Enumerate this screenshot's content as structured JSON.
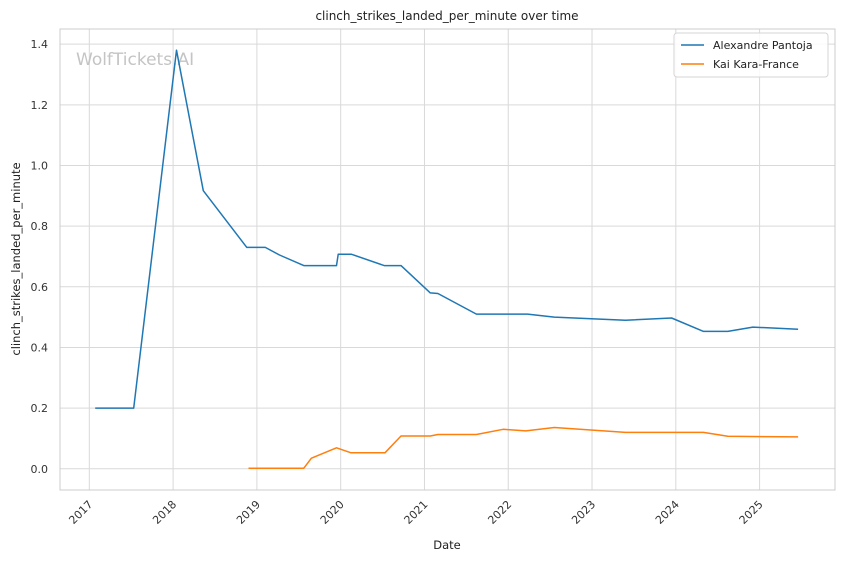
{
  "watermark": "WolfTickets.AI",
  "chart_data": {
    "type": "line",
    "title": "clinch_strikes_landed_per_minute over time",
    "xlabel": "Date",
    "ylabel": "clinch_strikes_landed_per_minute",
    "xlim": [
      2016.65,
      2025.9
    ],
    "ylim": [
      -0.07,
      1.45
    ],
    "x_ticks": [
      2017,
      2018,
      2019,
      2020,
      2021,
      2022,
      2023,
      2024,
      2025
    ],
    "x_tick_labels": [
      "2017",
      "2018",
      "2019",
      "2020",
      "2021",
      "2022",
      "2023",
      "2024",
      "2025"
    ],
    "y_ticks": [
      0.0,
      0.2,
      0.4,
      0.6,
      0.8,
      1.0,
      1.2,
      1.4
    ],
    "y_tick_labels": [
      "0.0",
      "0.2",
      "0.4",
      "0.6",
      "0.8",
      "1.0",
      "1.2",
      "1.4"
    ],
    "grid": true,
    "legend_position": "top-right",
    "series": [
      {
        "name": "Alexandre Pantoja",
        "color": "#1f77b4",
        "points": [
          [
            2017.07,
            0.2
          ],
          [
            2017.53,
            0.2
          ],
          [
            2018.04,
            1.38
          ],
          [
            2018.36,
            0.917
          ],
          [
            2018.88,
            0.73
          ],
          [
            2019.1,
            0.73
          ],
          [
            2019.27,
            0.705
          ],
          [
            2019.56,
            0.67
          ],
          [
            2019.95,
            0.67
          ],
          [
            2019.97,
            0.707
          ],
          [
            2020.13,
            0.707
          ],
          [
            2020.52,
            0.67
          ],
          [
            2020.72,
            0.67
          ],
          [
            2021.07,
            0.58
          ],
          [
            2021.16,
            0.578
          ],
          [
            2021.62,
            0.51
          ],
          [
            2022.23,
            0.51
          ],
          [
            2022.55,
            0.5
          ],
          [
            2023.4,
            0.49
          ],
          [
            2023.95,
            0.497
          ],
          [
            2024.33,
            0.453
          ],
          [
            2024.62,
            0.453
          ],
          [
            2024.92,
            0.467
          ],
          [
            2025.46,
            0.46
          ]
        ]
      },
      {
        "name": "Kai Kara-France",
        "color": "#ff7f0e",
        "points": [
          [
            2018.9,
            0.002
          ],
          [
            2019.56,
            0.002
          ],
          [
            2019.65,
            0.035
          ],
          [
            2019.95,
            0.069
          ],
          [
            2020.12,
            0.053
          ],
          [
            2020.53,
            0.053
          ],
          [
            2020.72,
            0.108
          ],
          [
            2021.07,
            0.108
          ],
          [
            2021.16,
            0.113
          ],
          [
            2021.62,
            0.113
          ],
          [
            2021.94,
            0.13
          ],
          [
            2022.21,
            0.125
          ],
          [
            2022.55,
            0.136
          ],
          [
            2023.4,
            0.12
          ],
          [
            2024.33,
            0.12
          ],
          [
            2024.62,
            0.107
          ],
          [
            2025.46,
            0.105
          ]
        ]
      }
    ]
  }
}
